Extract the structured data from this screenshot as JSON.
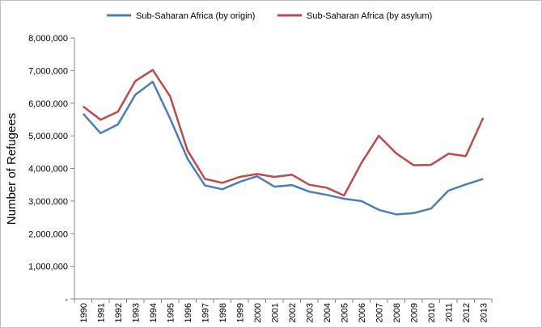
{
  "chart_data": {
    "type": "line",
    "title": "",
    "xlabel": "",
    "ylabel": "Number of Refugees",
    "ylim": [
      0,
      8000000
    ],
    "y_ticks": [
      "-",
      "1,000,000",
      "2,000,000",
      "3,000,000",
      "4,000,000",
      "5,000,000",
      "6,000,000",
      "7,000,000",
      "8,000,000"
    ],
    "x": [
      "1990",
      "1991",
      "1992",
      "1993",
      "1994",
      "1995",
      "1996",
      "1997",
      "1998",
      "1999",
      "2000",
      "2001",
      "2002",
      "2003",
      "2004",
      "2005",
      "2006",
      "2007",
      "2008",
      "2009",
      "2010",
      "2011",
      "2012",
      "2013"
    ],
    "grid": false,
    "legend_position": "top",
    "series": [
      {
        "name": "Sub-Saharan Africa (by origin)",
        "color": "#4a7ebb",
        "values": [
          5680000,
          5080000,
          5350000,
          6260000,
          6660000,
          5530000,
          4300000,
          3480000,
          3360000,
          3590000,
          3760000,
          3440000,
          3490000,
          3290000,
          3190000,
          3070000,
          3000000,
          2730000,
          2590000,
          2630000,
          2770000,
          3320000,
          3510000,
          3680000
        ]
      },
      {
        "name": "Sub-Saharan Africa (by asylum)",
        "color": "#be4b48",
        "values": [
          5900000,
          5490000,
          5740000,
          6680000,
          7020000,
          6210000,
          4550000,
          3680000,
          3560000,
          3740000,
          3830000,
          3740000,
          3810000,
          3500000,
          3410000,
          3170000,
          4170000,
          5000000,
          4460000,
          4100000,
          4110000,
          4450000,
          4380000,
          5550000
        ]
      }
    ]
  }
}
